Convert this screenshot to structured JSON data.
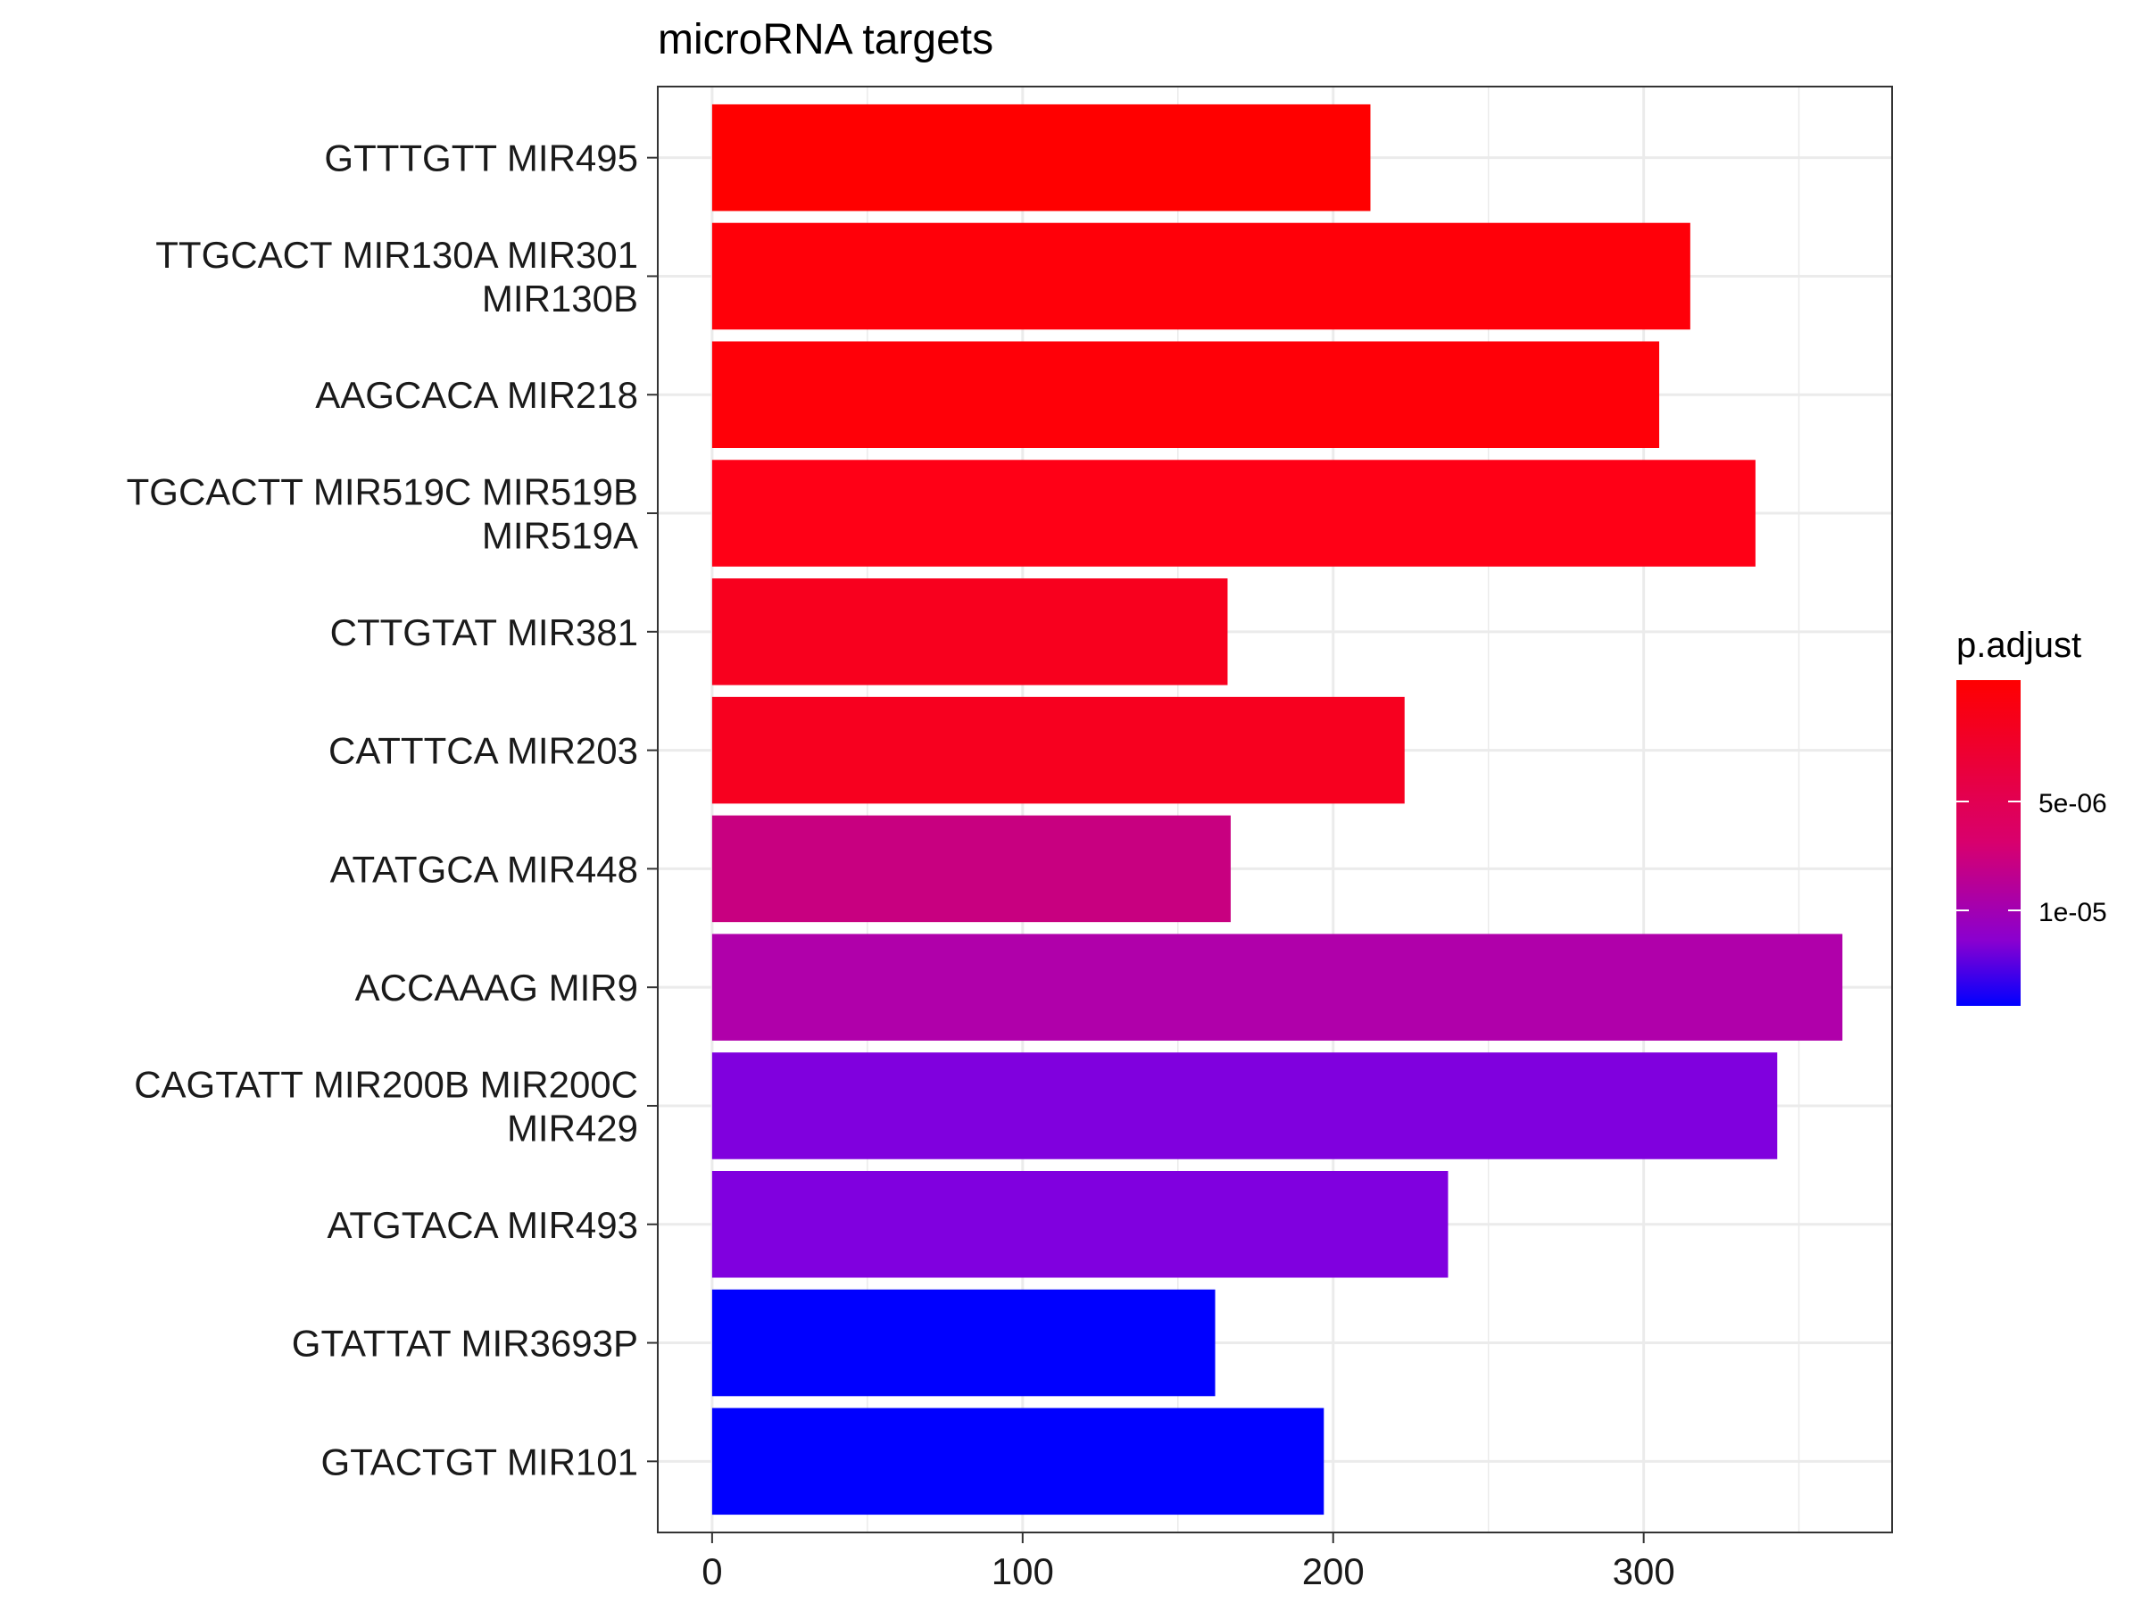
{
  "chart_data": {
    "type": "bar",
    "orientation": "horizontal",
    "title": "microRNA targets",
    "xlabel": "",
    "ylabel": "",
    "xlim": [
      -17.5,
      380
    ],
    "x_ticks": [
      0,
      100,
      200,
      300
    ],
    "grid": true,
    "categories": [
      [
        "GTTTGTT MIR495"
      ],
      [
        "TTGCACT MIR130A MIR301",
        "MIR130B"
      ],
      [
        "AAGCACA MIR218"
      ],
      [
        "TGCACTT MIR519C MIR519B",
        "MIR519A"
      ],
      [
        "CTTGTAT MIR381"
      ],
      [
        "CATTTCA MIR203"
      ],
      [
        "ATATGCA MIR448"
      ],
      [
        "ACCAAAG MIR9"
      ],
      [
        "CAGTATT MIR200B MIR200C",
        "MIR429"
      ],
      [
        "ATGTACA MIR493"
      ],
      [
        "GTATTAT MIR3693P"
      ],
      [
        "GTACTGT MIR101"
      ]
    ],
    "values": [
      212,
      315,
      305,
      336,
      166,
      223,
      167,
      364,
      343,
      237,
      162,
      197
    ],
    "colors": [
      "#FF0000",
      "#FF0009",
      "#FF0008",
      "#FF0016",
      "#F8001E",
      "#F7001F",
      "#C80080",
      "#B000AA",
      "#8000DE",
      "#8000DF",
      "#0000FF",
      "#0000FF"
    ],
    "legend": {
      "title": "p.adjust",
      "position": "right",
      "gradient": [
        "#FF0000",
        "#0000FF"
      ],
      "labels": [
        "5e-06",
        "1e-05"
      ]
    }
  }
}
